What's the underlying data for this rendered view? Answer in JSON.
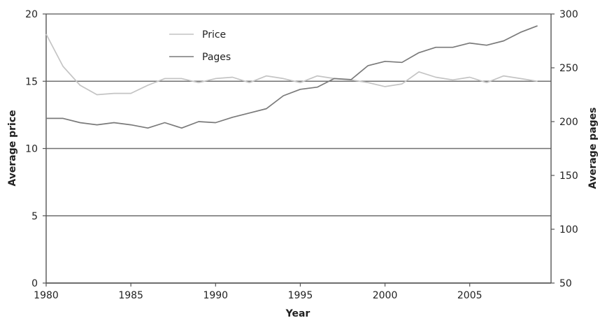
{
  "chart_data": {
    "type": "line",
    "xlabel": "Year",
    "ylabel_left": "Average price",
    "ylabel_right": "Average pages",
    "xlim": [
      1980,
      2009.8
    ],
    "ylim_left": [
      0,
      20
    ],
    "ylim_right": [
      50,
      300
    ],
    "x_ticks": [
      1980,
      1985,
      1990,
      1995,
      2000,
      2005
    ],
    "y_ticks_left": [
      0,
      5,
      10,
      15,
      20
    ],
    "y_ticks_right": [
      50,
      100,
      150,
      200,
      250,
      300
    ],
    "grid": "horizontal",
    "legend_position": "top-left",
    "series": [
      {
        "name": "Price",
        "axis": "left",
        "color": "#c4c4c4",
        "x": [
          1980,
          1981,
          1982,
          1983,
          1984,
          1985,
          1986,
          1987,
          1988,
          1989,
          1990,
          1991,
          1992,
          1993,
          1994,
          1995,
          1996,
          1997,
          1998,
          1999,
          2000,
          2001,
          2002,
          2003,
          2004,
          2005,
          2006,
          2007,
          2008,
          2009
        ],
        "values": [
          18.5,
          16.1,
          14.7,
          14.0,
          14.1,
          14.1,
          14.7,
          15.2,
          15.2,
          14.9,
          15.2,
          15.3,
          14.9,
          15.4,
          15.2,
          14.9,
          15.4,
          15.2,
          15.1,
          14.9,
          14.6,
          14.8,
          15.7,
          15.3,
          15.1,
          15.3,
          14.9,
          15.4,
          15.2,
          15.0
        ]
      },
      {
        "name": "Pages",
        "axis": "right",
        "color": "#7a7a7a",
        "x": [
          1980,
          1981,
          1982,
          1983,
          1984,
          1985,
          1986,
          1987,
          1988,
          1989,
          1990,
          1991,
          1992,
          1993,
          1994,
          1995,
          1996,
          1997,
          1998,
          1999,
          2000,
          2001,
          2002,
          2003,
          2004,
          2005,
          2006,
          2007,
          2008,
          2009
        ],
        "values": [
          203,
          203,
          199,
          197,
          199,
          197,
          194,
          199,
          194,
          200,
          199,
          204,
          208,
          212,
          224,
          230,
          232,
          240,
          239,
          252,
          256,
          255,
          264,
          269,
          269,
          273,
          271,
          275,
          283,
          289
        ]
      }
    ]
  }
}
